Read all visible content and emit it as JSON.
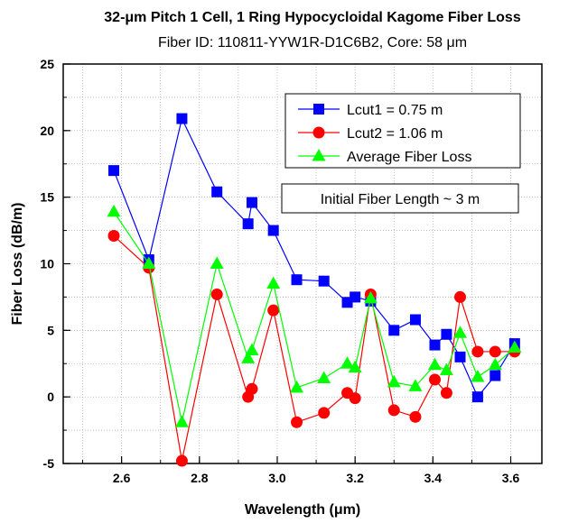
{
  "chart_data": {
    "type": "line",
    "title": "32-μm Pitch 1 Cell, 1 Ring Hypocycloidal Kagome Fiber Loss",
    "subtitle": "Fiber ID: 110811-YYW1R-D1C6B2, Core: 58 μm",
    "xlabel": "Wavelength (μm)",
    "ylabel": "Fiber Loss (dB/m)",
    "xlim": [
      2.45,
      3.68
    ],
    "ylim": [
      -5,
      25
    ],
    "xticks": [
      2.6,
      2.8,
      3.0,
      3.2,
      3.4,
      3.6
    ],
    "xtick_labels": [
      "2.6",
      "2.8",
      "3.0",
      "3.2",
      "3.4",
      "3.6"
    ],
    "yticks": [
      -5,
      0,
      5,
      10,
      15,
      20,
      25
    ],
    "ytick_labels": [
      "-5",
      "0",
      "5",
      "10",
      "15",
      "20",
      "25"
    ],
    "grid": "dotted",
    "legend_position": "top-right",
    "annotation": "Initial Fiber Length ~ 3 m",
    "series": [
      {
        "name": "Lcut1 = 0.75 m",
        "color": "#0000ff",
        "marker": "square",
        "x": [
          2.58,
          2.67,
          2.755,
          2.845,
          2.925,
          2.935,
          2.99,
          3.05,
          3.12,
          3.18,
          3.2,
          3.24,
          3.3,
          3.355,
          3.405,
          3.435,
          3.47,
          3.515,
          3.56,
          3.61
        ],
        "y": [
          17.0,
          10.3,
          20.9,
          15.4,
          13.0,
          14.6,
          12.5,
          8.8,
          8.7,
          7.1,
          7.5,
          7.2,
          5.0,
          5.8,
          3.9,
          4.7,
          3.0,
          0.0,
          1.6,
          4.0
        ]
      },
      {
        "name": "Lcut2 = 1.06 m",
        "color": "#ff0000",
        "marker": "circle",
        "x": [
          2.58,
          2.67,
          2.755,
          2.845,
          2.925,
          2.935,
          2.99,
          3.05,
          3.12,
          3.18,
          3.2,
          3.24,
          3.3,
          3.355,
          3.405,
          3.435,
          3.47,
          3.515,
          3.56,
          3.61
        ],
        "y": [
          12.1,
          9.7,
          -4.8,
          7.7,
          0.0,
          0.6,
          6.5,
          -1.9,
          -1.2,
          0.3,
          -0.1,
          7.7,
          -1.0,
          -1.5,
          1.3,
          0.3,
          7.5,
          3.4,
          3.4,
          3.4
        ]
      },
      {
        "name": "Average Fiber Loss",
        "color": "#00ff00",
        "marker": "triangle",
        "x": [
          2.58,
          2.67,
          2.755,
          2.845,
          2.925,
          2.935,
          2.99,
          3.05,
          3.12,
          3.18,
          3.2,
          3.24,
          3.3,
          3.355,
          3.405,
          3.435,
          3.47,
          3.515,
          3.56,
          3.61
        ],
        "y": [
          13.9,
          10.0,
          -1.9,
          10.0,
          2.9,
          3.5,
          8.5,
          0.7,
          1.4,
          2.5,
          2.2,
          7.4,
          1.1,
          0.8,
          2.4,
          2.0,
          4.8,
          1.5,
          2.4,
          3.7
        ]
      }
    ]
  }
}
